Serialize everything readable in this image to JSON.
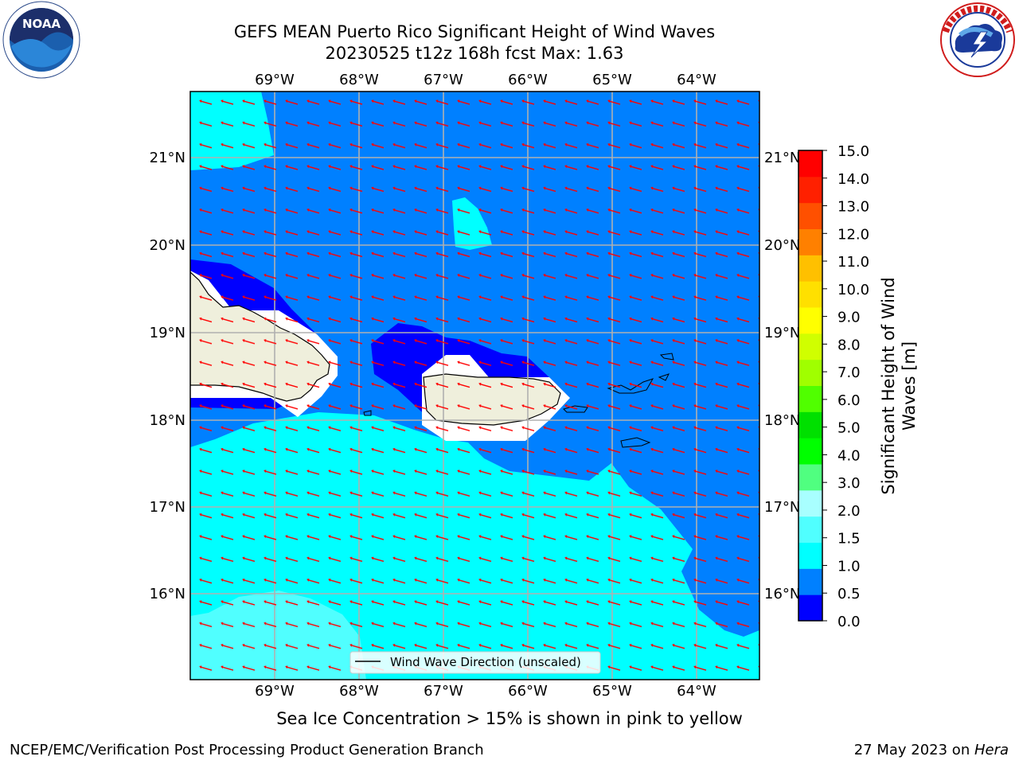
{
  "header": {
    "title_line1": "GEFS MEAN Puerto Rico Significant Height of Wind Waves",
    "title_line2": "20230525 t12z 168h fcst   Max: 1.63"
  },
  "logos": {
    "left": "noaa-logo",
    "left_text": "NOAA",
    "right": "nws-logo"
  },
  "map": {
    "lon_ticks": [
      "69°W",
      "68°W",
      "67°W",
      "66°W",
      "65°W",
      "64°W"
    ],
    "lat_ticks": [
      "21°N",
      "20°N",
      "19°N",
      "18°N",
      "17°N",
      "16°N"
    ],
    "legend_label": "Wind Wave Direction (unscaled)",
    "arrow_color": "#ff0000"
  },
  "colorbar": {
    "label": "Significant Height of Wind Waves [m]",
    "label_line1": "Significant Height of Wind",
    "label_line2": "Waves [m]",
    "ticks": [
      "15.0",
      "14.0",
      "13.0",
      "12.0",
      "11.0",
      "10.0",
      "9.0",
      "8.0",
      "7.0",
      "6.0",
      "5.0",
      "4.0",
      "3.0",
      "2.0",
      "1.5",
      "1.0",
      "0.5",
      "0.0"
    ],
    "colors_bottom_to_top": [
      "#0000ff",
      "#0080ff",
      "#00ffff",
      "#50ffff",
      "#a8ffff",
      "#50ff80",
      "#00ff00",
      "#00e000",
      "#50ff00",
      "#a0ff00",
      "#d0ff00",
      "#ffff00",
      "#ffe000",
      "#ffc000",
      "#ff8000",
      "#ff5000",
      "#ff2000",
      "#ff0000"
    ]
  },
  "footer": {
    "note": "Sea Ice Concentration > 15% is shown in pink to yellow",
    "left": "NCEP/EMC/Verification Post Processing Product Generation Branch",
    "right_date": "27 May 2023 on ",
    "right_host": "Hera"
  }
}
